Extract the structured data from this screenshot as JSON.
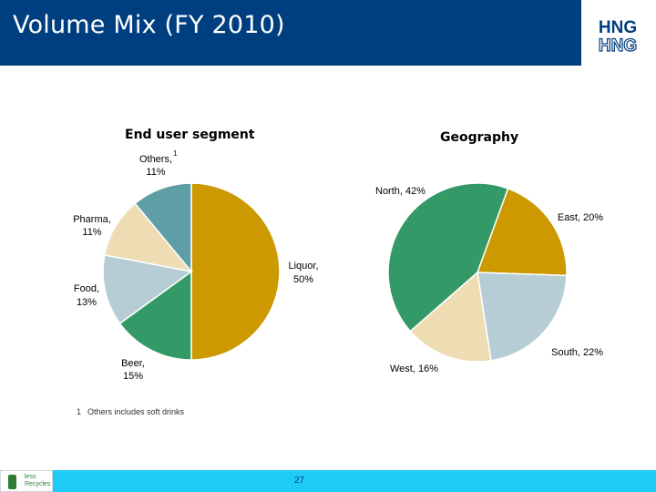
{
  "header": {
    "title": "Volume Mix (FY 2010)",
    "logo_text_top": "HNG",
    "logo_text_bottom": "HNG"
  },
  "chart_data": [
    {
      "type": "pie",
      "title": "End user segment",
      "unit": "%",
      "slices": [
        {
          "name": "Liquor",
          "value": 50,
          "label": "Liquor,",
          "pct": "50%",
          "color": "#cc9900"
        },
        {
          "name": "Beer",
          "value": 15,
          "label": "Beer,",
          "pct": "15%",
          "color": "#339966"
        },
        {
          "name": "Food",
          "value": 13,
          "label": "Food,",
          "pct": "13%",
          "color": "#b6cdd6"
        },
        {
          "name": "Pharma",
          "value": 11,
          "label": "Pharma,",
          "pct": "11%",
          "color": "#eedcb3"
        },
        {
          "name": "Others",
          "value": 11,
          "label": "Others,",
          "pct": "11%",
          "sup": "1",
          "color": "#5f9ea6"
        }
      ]
    },
    {
      "type": "pie",
      "title": "Geography",
      "unit": "%",
      "slices": [
        {
          "name": "East",
          "value": 20,
          "label": "East, 20%",
          "color": "#cc9900"
        },
        {
          "name": "South",
          "value": 22,
          "label": "South, 22%",
          "color": "#b6cdd6"
        },
        {
          "name": "West",
          "value": 16,
          "label": "West, 16%",
          "color": "#eedcb3"
        },
        {
          "name": "North",
          "value": 42,
          "label": "North, 42%",
          "color": "#339966"
        }
      ]
    }
  ],
  "footnote": {
    "number": "1",
    "text": "Others includes soft drinks"
  },
  "bottom": {
    "page_number": "27",
    "logo_line1": "less",
    "logo_line2": "Recycles"
  }
}
